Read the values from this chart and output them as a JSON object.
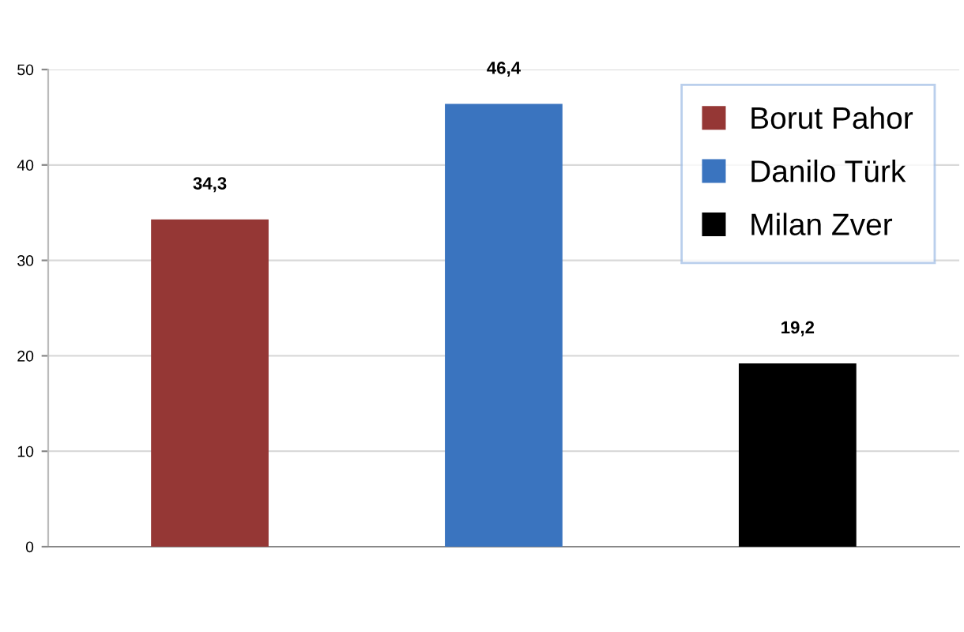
{
  "chart_data": {
    "type": "bar",
    "categories": [
      null,
      null,
      null
    ],
    "series": [
      {
        "name": "Borut Pahor",
        "color": "#953735",
        "values": [
          34.3,
          null,
          null
        ],
        "value_labels": [
          "34,3",
          null,
          null
        ]
      },
      {
        "name": "Danilo Türk",
        "color": "#3a74bf",
        "values": [
          null,
          46.4,
          null
        ],
        "value_labels": [
          null,
          "46,4",
          null
        ]
      },
      {
        "name": "Milan Zver",
        "color": "#000000",
        "values": [
          null,
          null,
          19.2
        ],
        "value_labels": [
          null,
          null,
          "19,2"
        ]
      }
    ],
    "ylim": [
      0,
      50
    ],
    "yticks": [
      0,
      10,
      20,
      30,
      40,
      50
    ],
    "grid": "y",
    "legend": "top right",
    "tick_labels": "y"
  }
}
